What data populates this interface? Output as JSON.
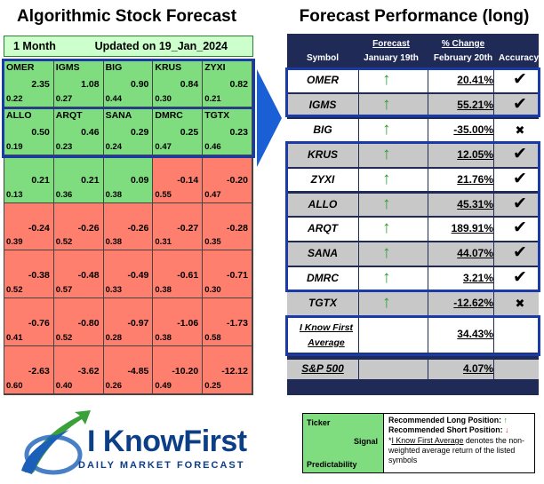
{
  "left": {
    "title": "Algorithmic Stock Forecast",
    "period": "1 Month",
    "updated": "Updated on 19_Jan_2024",
    "cells": [
      {
        "symbol": "OMER",
        "signal": "2.35",
        "predictability": "0.22",
        "color": "green"
      },
      {
        "symbol": "IGMS",
        "signal": "1.08",
        "predictability": "0.27",
        "color": "green"
      },
      {
        "symbol": "BIG",
        "signal": "0.90",
        "predictability": "0.44",
        "color": "green"
      },
      {
        "symbol": "KRUS",
        "signal": "0.84",
        "predictability": "0.30",
        "color": "green"
      },
      {
        "symbol": "ZYXI",
        "signal": "0.82",
        "predictability": "0.21",
        "color": "green"
      },
      {
        "symbol": "ALLO",
        "signal": "0.50",
        "predictability": "0.19",
        "color": "green"
      },
      {
        "symbol": "ARQT",
        "signal": "0.46",
        "predictability": "0.23",
        "color": "green"
      },
      {
        "symbol": "SANA",
        "signal": "0.29",
        "predictability": "0.24",
        "color": "green"
      },
      {
        "symbol": "DMRC",
        "signal": "0.25",
        "predictability": "0.47",
        "color": "green"
      },
      {
        "symbol": "TGTX",
        "signal": "0.23",
        "predictability": "0.46",
        "color": "green"
      },
      {
        "symbol": "",
        "signal": "0.21",
        "predictability": "0.13",
        "color": "green"
      },
      {
        "symbol": "",
        "signal": "0.21",
        "predictability": "0.36",
        "color": "green"
      },
      {
        "symbol": "",
        "signal": "0.09",
        "predictability": "0.38",
        "color": "green"
      },
      {
        "symbol": "",
        "signal": "-0.14",
        "predictability": "0.55",
        "color": "red"
      },
      {
        "symbol": "",
        "signal": "-0.20",
        "predictability": "0.47",
        "color": "red"
      },
      {
        "symbol": "",
        "signal": "-0.24",
        "predictability": "0.39",
        "color": "red"
      },
      {
        "symbol": "",
        "signal": "-0.26",
        "predictability": "0.52",
        "color": "red"
      },
      {
        "symbol": "",
        "signal": "-0.26",
        "predictability": "0.38",
        "color": "red"
      },
      {
        "symbol": "",
        "signal": "-0.27",
        "predictability": "0.31",
        "color": "red"
      },
      {
        "symbol": "",
        "signal": "-0.28",
        "predictability": "0.35",
        "color": "red"
      },
      {
        "symbol": "",
        "signal": "-0.38",
        "predictability": "0.52",
        "color": "red"
      },
      {
        "symbol": "",
        "signal": "-0.48",
        "predictability": "0.57",
        "color": "red"
      },
      {
        "symbol": "",
        "signal": "-0.49",
        "predictability": "0.33",
        "color": "red"
      },
      {
        "symbol": "",
        "signal": "-0.61",
        "predictability": "0.38",
        "color": "red"
      },
      {
        "symbol": "",
        "signal": "-0.71",
        "predictability": "0.30",
        "color": "red"
      },
      {
        "symbol": "",
        "signal": "-0.76",
        "predictability": "0.41",
        "color": "red"
      },
      {
        "symbol": "",
        "signal": "-0.80",
        "predictability": "0.52",
        "color": "red"
      },
      {
        "symbol": "",
        "signal": "-0.97",
        "predictability": "0.28",
        "color": "red"
      },
      {
        "symbol": "",
        "signal": "-1.06",
        "predictability": "0.38",
        "color": "red"
      },
      {
        "symbol": "",
        "signal": "-1.73",
        "predictability": "0.58",
        "color": "red"
      },
      {
        "symbol": "",
        "signal": "-2.63",
        "predictability": "0.60",
        "color": "red"
      },
      {
        "symbol": "",
        "signal": "-3.62",
        "predictability": "0.40",
        "color": "red"
      },
      {
        "symbol": "",
        "signal": "-4.85",
        "predictability": "0.26",
        "color": "red"
      },
      {
        "symbol": "",
        "signal": "-10.20",
        "predictability": "0.49",
        "color": "red"
      },
      {
        "symbol": "",
        "signal": "-12.12",
        "predictability": "0.25",
        "color": "red"
      }
    ]
  },
  "right": {
    "title": "Forecast Performance (long)",
    "headers": {
      "symbol": "Symbol",
      "forecast_top": "Forecast",
      "forecast_bottom": "January 19th",
      "change_top": "% Change",
      "change_bottom": "February 20th",
      "accuracy": "Accuracy"
    },
    "rows": [
      {
        "symbol": "OMER",
        "change": "20.41%",
        "accuracy": "✔",
        "shade": "white"
      },
      {
        "symbol": "IGMS",
        "change": "55.21%",
        "accuracy": "✔",
        "shade": "gray"
      },
      {
        "symbol": "BIG",
        "change": "-35.00%",
        "accuracy": "✖",
        "shade": "white"
      },
      {
        "symbol": "KRUS",
        "change": "12.05%",
        "accuracy": "✔",
        "shade": "gray"
      },
      {
        "symbol": "ZYXI",
        "change": "21.76%",
        "accuracy": "✔",
        "shade": "white"
      },
      {
        "symbol": "ALLO",
        "change": "45.31%",
        "accuracy": "✔",
        "shade": "gray"
      },
      {
        "symbol": "ARQT",
        "change": "189.91%",
        "accuracy": "✔",
        "shade": "white"
      },
      {
        "symbol": "SANA",
        "change": "44.07%",
        "accuracy": "✔",
        "shade": "gray"
      },
      {
        "symbol": "DMRC",
        "change": "3.21%",
        "accuracy": "✔",
        "shade": "white"
      },
      {
        "symbol": "TGTX",
        "change": "-12.62%",
        "accuracy": "✖",
        "shade": "gray"
      }
    ],
    "forecast_arrow": "↑",
    "average_label_1": "I Know First",
    "average_label_2": "Average",
    "average_value": "34.43%",
    "sp_label": "S&P 500",
    "sp_value": "4.07%"
  },
  "logo": {
    "name": "I KnowFirst",
    "tagline": "DAILY MARKET FORECAST"
  },
  "legend": {
    "ticker": "Ticker",
    "signal": "Signal",
    "predictability": "Predictability",
    "long_text": "Recommended Long Position:",
    "long_arrow": "↑",
    "short_text": "Recommended Short Position:",
    "short_arrow": "↓",
    "note_star": "*",
    "note_link": "I Know First Average",
    "note_rest": " denotes the non-weighted average return of the listed symbols"
  },
  "colors": {
    "green": "#7fdd7f",
    "red": "#ff7f6f",
    "navy": "#1f2a56",
    "highlight_blue": "#1a3aa8"
  }
}
